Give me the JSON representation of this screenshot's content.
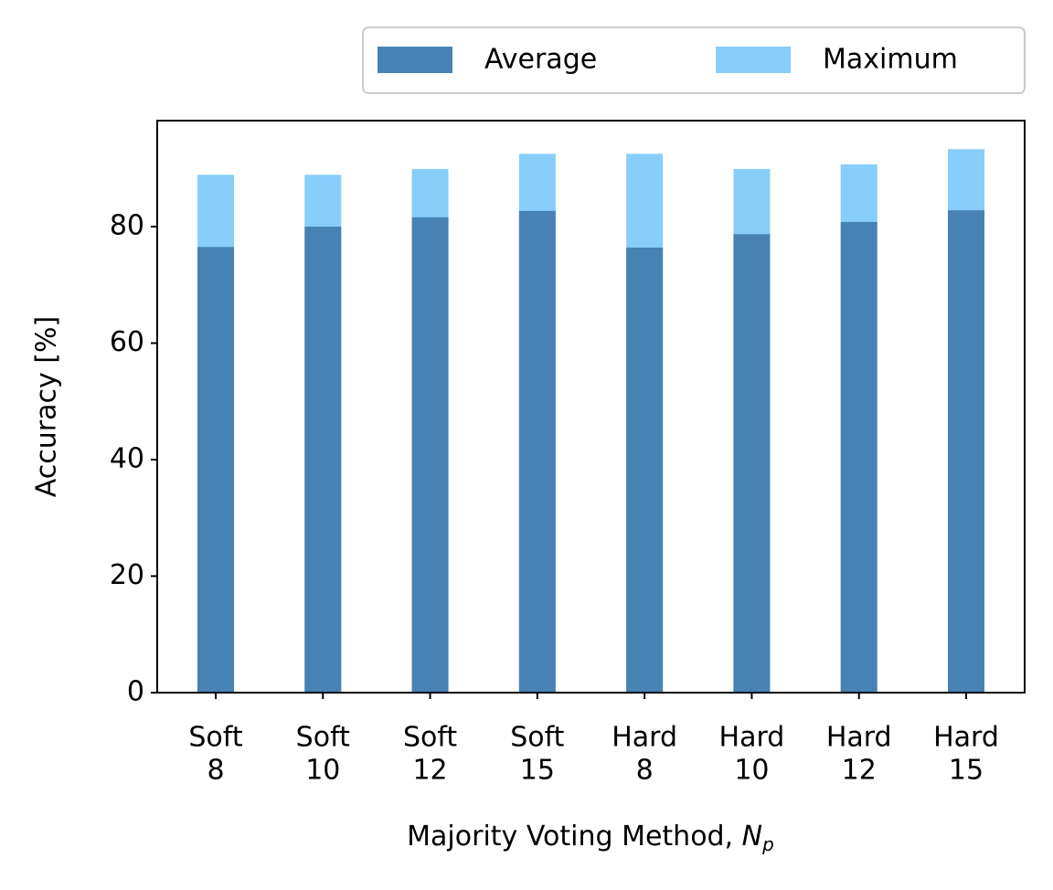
{
  "chart_data": {
    "type": "bar",
    "ylabel": "Accuracy [%]",
    "xlabel": {
      "text": "Majority Voting Method,",
      "symbol": "N",
      "subscript": "p"
    },
    "categories": [
      [
        "Soft",
        "8"
      ],
      [
        "Soft",
        "10"
      ],
      [
        "Soft",
        "12"
      ],
      [
        "Soft",
        "15"
      ],
      [
        "Hard",
        "8"
      ],
      [
        "Hard",
        "10"
      ],
      [
        "Hard",
        "12"
      ],
      [
        "Hard",
        "15"
      ]
    ],
    "series": [
      {
        "name": "Maximum",
        "color": "#87cefa",
        "values": [
          88.9,
          88.9,
          89.9,
          92.5,
          92.5,
          89.9,
          90.7,
          93.3
        ]
      },
      {
        "name": "Average",
        "color": "#4682b4",
        "values": [
          76.5,
          80.0,
          81.6,
          82.7,
          76.4,
          78.7,
          80.8,
          82.8
        ]
      }
    ],
    "legend_order": [
      1,
      0
    ],
    "legend": "top-right",
    "ylim": [
      0,
      98.2
    ],
    "yticks": [
      0,
      20,
      40,
      60,
      80
    ],
    "grid": false
  }
}
